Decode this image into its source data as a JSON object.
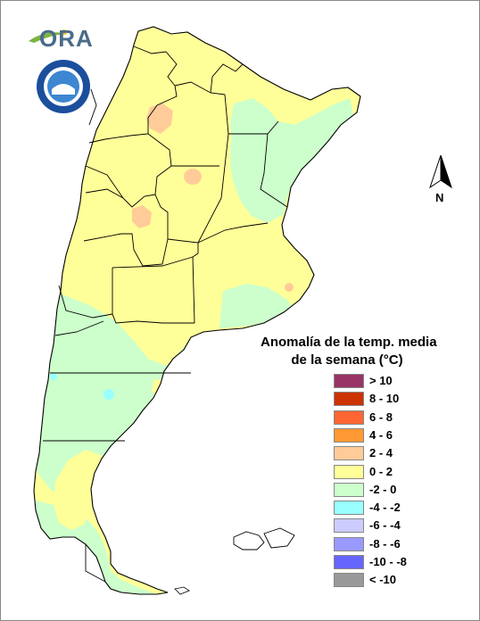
{
  "logo": {
    "text": "ORA",
    "seal_text": "SERVICIO METEOROLÓGICO NACIONAL ARGENTINA"
  },
  "north": {
    "label": "N",
    "icon": "north-arrow-icon"
  },
  "legend": {
    "title_line1": "Anomalía de la temp. media",
    "title_line2": "de la semana (°C)",
    "items": [
      {
        "label": "> 10",
        "color": "#993366"
      },
      {
        "label": "8 - 10",
        "color": "#cc3300"
      },
      {
        "label": "6 - 8",
        "color": "#ff6633"
      },
      {
        "label": "4 - 6",
        "color": "#ff9933"
      },
      {
        "label": "2 - 4",
        "color": "#ffcc99"
      },
      {
        "label": "0 - 2",
        "color": "#ffff99"
      },
      {
        "label": "-2 - 0",
        "color": "#ccffcc"
      },
      {
        "label": "-4 - -2",
        "color": "#99ffff"
      },
      {
        "label": "-6 - -4",
        "color": "#ccccff"
      },
      {
        "label": "-8 - -6",
        "color": "#9999ff"
      },
      {
        "label": "-10 - -8",
        "color": "#6666ff"
      },
      {
        "label": "< -10",
        "color": "#999999"
      }
    ]
  },
  "map_colors": {
    "warm": "#ffff99",
    "cool": "#ccffcc",
    "hot": "#ffcc99",
    "cold": "#99ffff",
    "border": "#000000"
  }
}
